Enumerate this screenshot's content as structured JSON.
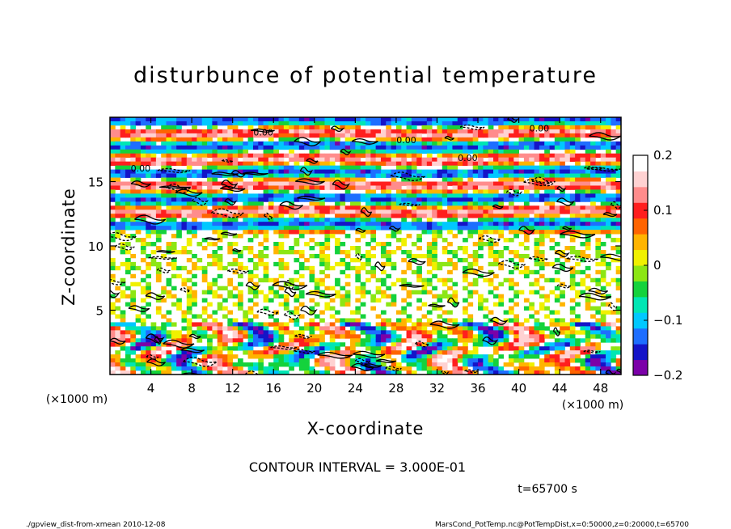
{
  "chart_data": {
    "type": "heatmap",
    "title": "disturbunce of potential temperature",
    "xlabel": "X-coordinate",
    "ylabel": "Z-coordinate",
    "x_unit": "(×1000 m)",
    "y_unit": "(×1000 m)",
    "xlim": [
      0,
      50
    ],
    "ylim": [
      0,
      20
    ],
    "x_ticks": [
      "4",
      "8",
      "12",
      "16",
      "20",
      "24",
      "28",
      "32",
      "36",
      "40",
      "44",
      "48"
    ],
    "y_ticks": [
      "5",
      "10",
      "15"
    ],
    "colorbar": {
      "range": [
        -0.2,
        0.2
      ],
      "tick_labels": [
        "0.2",
        "0.1",
        "0",
        "−0.1",
        "−0.2"
      ],
      "colors": [
        "#7b00a8",
        "#1414c8",
        "#1e6eff",
        "#00c8ff",
        "#00e6b4",
        "#14d23c",
        "#8ce614",
        "#f0f000",
        "#ffb400",
        "#ff6400",
        "#ff1e1e",
        "#ff8c8c",
        "#ffd2d2",
        "#ffffff"
      ]
    },
    "contour_label": "0.00",
    "contour_interval": "CONTOUR INTERVAL = 3.000E-01",
    "time_label": "t=65700 s",
    "footer_left": "./gpview_dist-from-xmean  2010-12-08",
    "footer_right": "MarsCond_PotTemp.nc@PotTempDist,x=0:50000,z=0:20000,t=65700"
  }
}
